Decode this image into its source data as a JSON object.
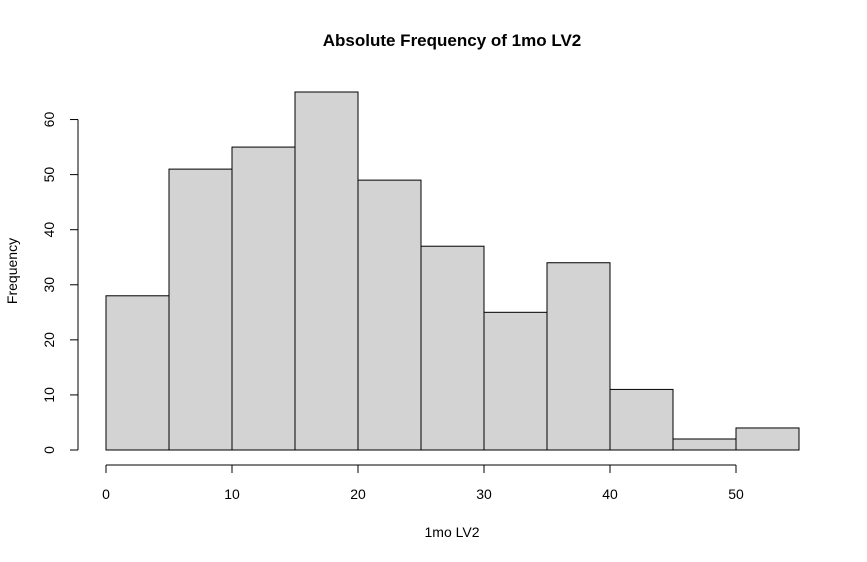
{
  "chart_data": {
    "type": "bar",
    "title": "Absolute Frequency of 1mo LV2",
    "xlabel": "1mo LV2",
    "ylabel": "Frequency",
    "bin_edges": [
      0,
      5,
      10,
      15,
      20,
      25,
      30,
      35,
      40,
      45,
      50,
      55
    ],
    "values": [
      28,
      51,
      55,
      65,
      49,
      37,
      25,
      34,
      11,
      2,
      4
    ],
    "xlim": [
      0,
      55
    ],
    "ylim": [
      0,
      65
    ],
    "x_ticks": [
      0,
      10,
      20,
      30,
      40,
      50
    ],
    "y_ticks": [
      0,
      10,
      20,
      30,
      40,
      50,
      60
    ],
    "grid": false,
    "bar_color": "#d3d3d3",
    "edge_color": "#000000"
  }
}
